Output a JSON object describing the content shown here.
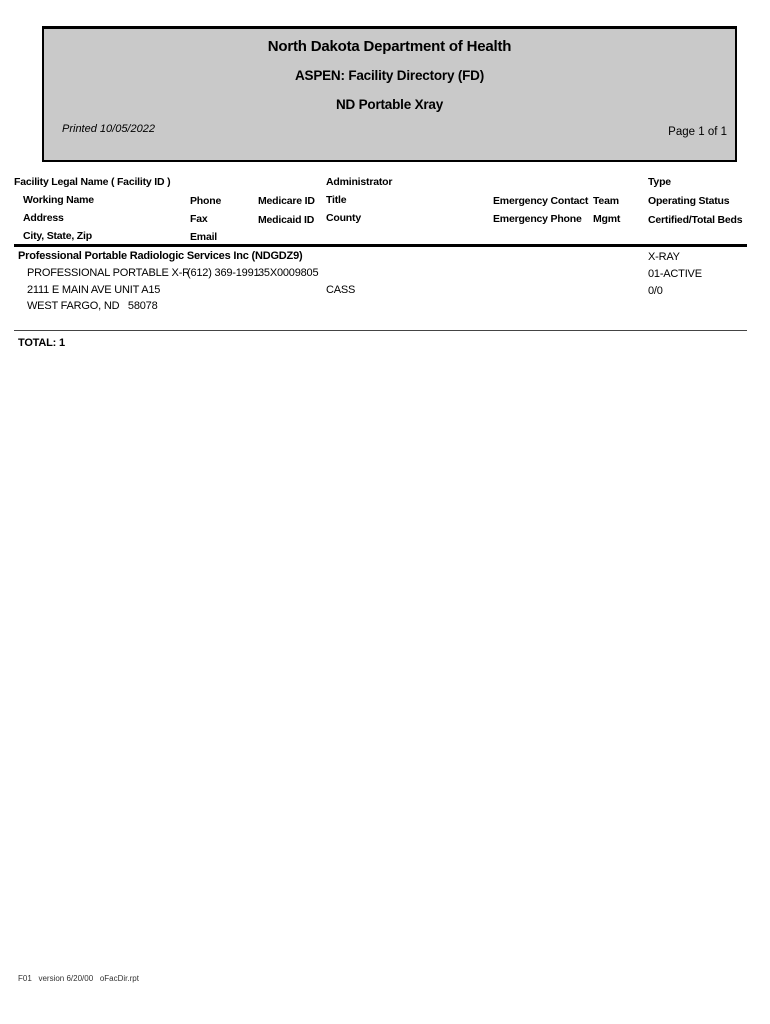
{
  "header": {
    "title": "North Dakota Department of Health",
    "subtitle": "ASPEN: Facility Directory (FD)",
    "report_name": "ND Portable Xray",
    "printed_label": "Printed 10/05/2022",
    "page_label": "Page 1 of 1"
  },
  "columns": {
    "facility_legal": "Facility Legal Name ( Facility ID )",
    "administrator": "Administrator",
    "type": "Type",
    "working_name": "Working Name",
    "phone": "Phone",
    "medicare_id": "Medicare ID",
    "title": "Title",
    "emergency_contact": "Emergency Contact",
    "team": "Team",
    "operating_status": "Operating Status",
    "address": "Address",
    "fax": "Fax",
    "medicaid_id": "Medicaid ID",
    "county": "County",
    "emergency_phone": "Emergency Phone",
    "mgmt": "Mgmt",
    "certified_total_beds": "Certified/Total Beds",
    "city_state_zip": "City, State, Zip",
    "email": "Email"
  },
  "facilities": [
    {
      "legal_name": "Professional Portable Radiologic Services Inc (NDGDZ9)",
      "type": "X-RAY",
      "working_name": "PROFESSIONAL PORTABLE X-RAY",
      "phone": "(612) 369-1991",
      "medicare_id": "35X0009805",
      "operating_status": "01-ACTIVE",
      "address": "2111 E MAIN AVE UNIT A15",
      "county": "CASS",
      "certified_total_beds": "0/0",
      "city_state_zip": "WEST FARGO, ND   58078"
    }
  ],
  "summary": {
    "total_label": "TOTAL: 1"
  },
  "footer": {
    "text": "F01   version 6/20/00   oFacDir.rpt"
  },
  "colors": {
    "header_box_bg": "#c9c9c9",
    "rule": "#000000"
  }
}
